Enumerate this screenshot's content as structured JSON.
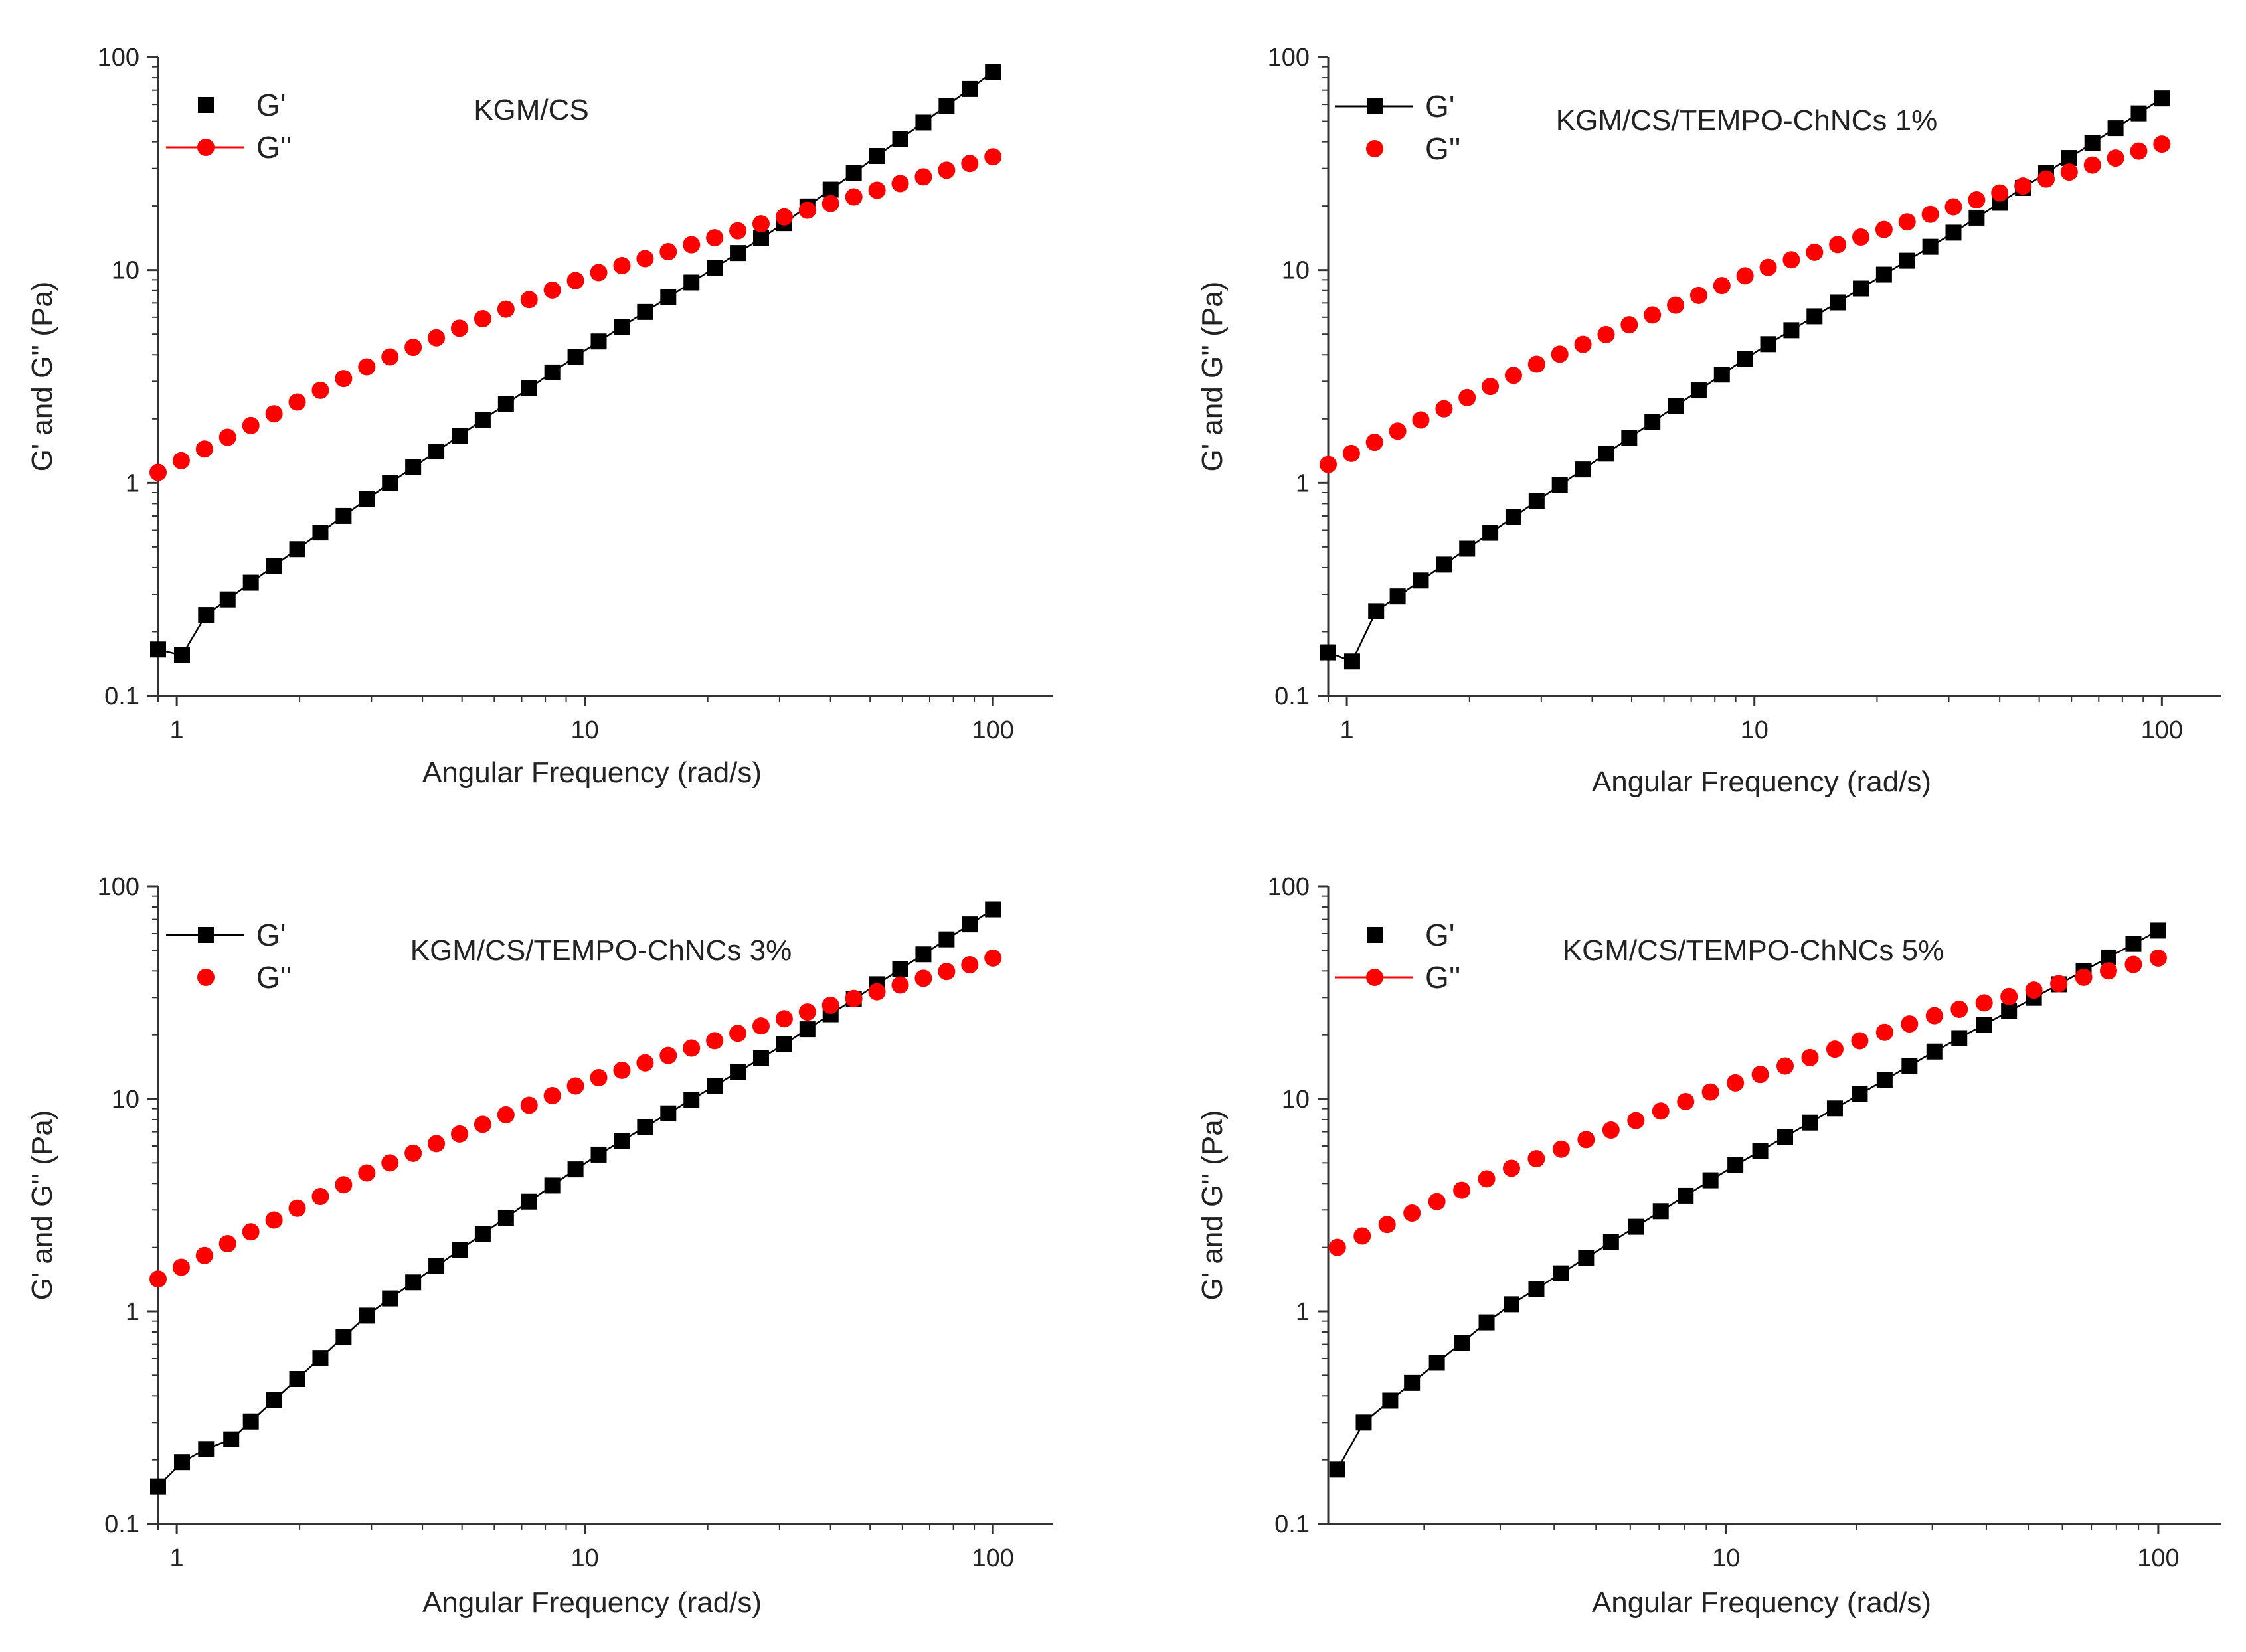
{
  "colors": {
    "g_prime": "#000000",
    "g_double_prime": "#ff0000",
    "axis": "#333333"
  },
  "chart_data": [
    {
      "type": "scatter",
      "title": "KGM/CS",
      "xlabel": "Angular Frequency (rad/s)",
      "ylabel": "G' and G'' (Pa)",
      "xscale": "log",
      "yscale": "log",
      "xlim": [
        0.9,
        140
      ],
      "ylim": [
        0.1,
        100
      ],
      "xticks": [
        {
          "v": 1,
          "label": "1"
        },
        {
          "v": 10,
          "label": "10"
        },
        {
          "v": 100,
          "label": "100"
        }
      ],
      "yticks": [
        {
          "v": 0.1,
          "label": "0.1"
        },
        {
          "v": 1,
          "label": "1"
        },
        {
          "v": 10,
          "label": "10"
        },
        {
          "v": 100,
          "label": "100"
        }
      ],
      "legend": {
        "position": "top-left",
        "entries": [
          "G'",
          "G''"
        ],
        "line_on": [
          false,
          true
        ]
      },
      "series": [
        {
          "name": "G'",
          "marker": "square",
          "color": "#000000",
          "connected": true,
          "f_start": 0.9,
          "f_end": 100,
          "n": 37,
          "start": [
            [
              0.9,
              0.165
            ],
            [
              1.03,
              0.155
            ],
            [
              1.18,
              0.24
            ]
          ],
          "curve": [
            [
              1.18,
              0.24
            ],
            [
              3.0,
              0.87
            ],
            [
              10,
              4.2
            ],
            [
              30,
              16.0
            ],
            [
              100,
              85
            ]
          ]
        },
        {
          "name": "G''",
          "marker": "circle",
          "color": "#ff0000",
          "connected": false,
          "f_start": 0.9,
          "f_end": 100,
          "n": 37,
          "start": [],
          "curve": [
            [
              0.9,
              1.12
            ],
            [
              3.0,
              3.6
            ],
            [
              10,
              9.3
            ],
            [
              30,
              17.5
            ],
            [
              100,
              34
            ]
          ]
        }
      ]
    },
    {
      "type": "scatter",
      "title": "KGM/CS/TEMPO-ChNCs 1%",
      "xlabel": "Angular Frequency (rad/s)",
      "ylabel": "G' and G'' (Pa)",
      "xscale": "log",
      "yscale": "log",
      "xlim": [
        0.9,
        140
      ],
      "ylim": [
        0.1,
        100
      ],
      "xticks": [
        {
          "v": 1,
          "label": "1"
        },
        {
          "v": 10,
          "label": "10"
        },
        {
          "v": 100,
          "label": "100"
        }
      ],
      "yticks": [
        {
          "v": 0.1,
          "label": "0.1"
        },
        {
          "v": 1,
          "label": "1"
        },
        {
          "v": 10,
          "label": "10"
        },
        {
          "v": 100,
          "label": "100"
        }
      ],
      "legend": {
        "position": "top-left",
        "entries": [
          "G'",
          "G''"
        ],
        "line_on": [
          true,
          false
        ]
      },
      "series": [
        {
          "name": "G'",
          "marker": "square",
          "color": "#000000",
          "connected": true,
          "f_start": 0.9,
          "f_end": 100,
          "n": 37,
          "start": [
            [
              0.9,
              0.16
            ],
            [
              1.03,
              0.145
            ],
            [
              1.18,
              0.25
            ]
          ],
          "curve": [
            [
              1.18,
              0.25
            ],
            [
              3.0,
              0.85
            ],
            [
              10,
              4.1
            ],
            [
              30,
              14.5
            ],
            [
              100,
              64
            ]
          ]
        },
        {
          "name": "G''",
          "marker": "circle",
          "color": "#ff0000",
          "connected": false,
          "f_start": 0.9,
          "f_end": 100,
          "n": 37,
          "start": [],
          "curve": [
            [
              0.9,
              1.22
            ],
            [
              3.0,
              3.7
            ],
            [
              10,
              9.8
            ],
            [
              30,
              19.5
            ],
            [
              100,
              39
            ]
          ]
        }
      ]
    },
    {
      "type": "scatter",
      "title": "KGM/CS/TEMPO-ChNCs 3%",
      "xlabel": "Angular Frequency (rad/s)",
      "ylabel": "G' and G'' (Pa)",
      "xscale": "log",
      "yscale": "log",
      "xlim": [
        0.9,
        140
      ],
      "ylim": [
        0.1,
        100
      ],
      "xticks": [
        {
          "v": 1,
          "label": "1"
        },
        {
          "v": 10,
          "label": "10"
        },
        {
          "v": 100,
          "label": "100"
        }
      ],
      "yticks": [
        {
          "v": 0.1,
          "label": "0.1"
        },
        {
          "v": 1,
          "label": "1"
        },
        {
          "v": 10,
          "label": "10"
        },
        {
          "v": 100,
          "label": "100"
        }
      ],
      "legend": {
        "position": "top-left",
        "entries": [
          "G'",
          "G''"
        ],
        "line_on": [
          true,
          false
        ]
      },
      "series": [
        {
          "name": "G'",
          "marker": "square",
          "color": "#000000",
          "connected": true,
          "f_start": 0.9,
          "f_end": 100,
          "n": 37,
          "start": [
            [
              0.9,
              0.15
            ],
            [
              1.03,
              0.195
            ],
            [
              1.18,
              0.225
            ],
            [
              1.36,
              0.25
            ]
          ],
          "curve": [
            [
              1.36,
              0.25
            ],
            [
              3.0,
              1.0
            ],
            [
              10,
              5.0
            ],
            [
              30,
              17.5
            ],
            [
              100,
              78
            ]
          ]
        },
        {
          "name": "G''",
          "marker": "circle",
          "color": "#ff0000",
          "connected": false,
          "f_start": 0.9,
          "f_end": 100,
          "n": 37,
          "start": [],
          "curve": [
            [
              0.9,
              1.42
            ],
            [
              3.0,
              4.6
            ],
            [
              10,
              12.0
            ],
            [
              30,
              23.5
            ],
            [
              100,
              46
            ]
          ]
        }
      ]
    },
    {
      "type": "scatter",
      "title": "KGM/CS/TEMPO-ChNCs 5%",
      "xlabel": "Angular Frequency (rad/s)",
      "ylabel": "G' and G'' (Pa)",
      "xscale": "log",
      "yscale": "log",
      "xlim": [
        1.2,
        140
      ],
      "ylim": [
        0.1,
        100
      ],
      "xticks": [
        {
          "v": 10,
          "label": "10"
        },
        {
          "v": 100,
          "label": "100"
        }
      ],
      "yticks": [
        {
          "v": 0.1,
          "label": "0.1"
        },
        {
          "v": 1,
          "label": "1"
        },
        {
          "v": 10,
          "label": "10"
        },
        {
          "v": 100,
          "label": "100"
        }
      ],
      "legend": {
        "position": "top-left",
        "entries": [
          "G'",
          "G''"
        ],
        "line_on": [
          false,
          true
        ]
      },
      "series": [
        {
          "name": "G'",
          "marker": "square",
          "color": "#000000",
          "connected": true,
          "f_start": 1.26,
          "f_end": 100,
          "n": 34,
          "start": [
            [
              1.26,
              0.18
            ],
            [
              1.45,
              0.3
            ],
            [
              1.67,
              0.38
            ]
          ],
          "curve": [
            [
              1.67,
              0.38
            ],
            [
              3.0,
              1.0
            ],
            [
              10,
              4.6
            ],
            [
              30,
              16.5
            ],
            [
              100,
              62
            ]
          ]
        },
        {
          "name": "G''",
          "marker": "circle",
          "color": "#ff0000",
          "connected": false,
          "f_start": 1.26,
          "f_end": 100,
          "n": 34,
          "start": [],
          "curve": [
            [
              1.26,
              2.0
            ],
            [
              3.0,
              4.5
            ],
            [
              10,
              11.5
            ],
            [
              30,
              24.5
            ],
            [
              100,
              46
            ]
          ]
        }
      ]
    }
  ]
}
